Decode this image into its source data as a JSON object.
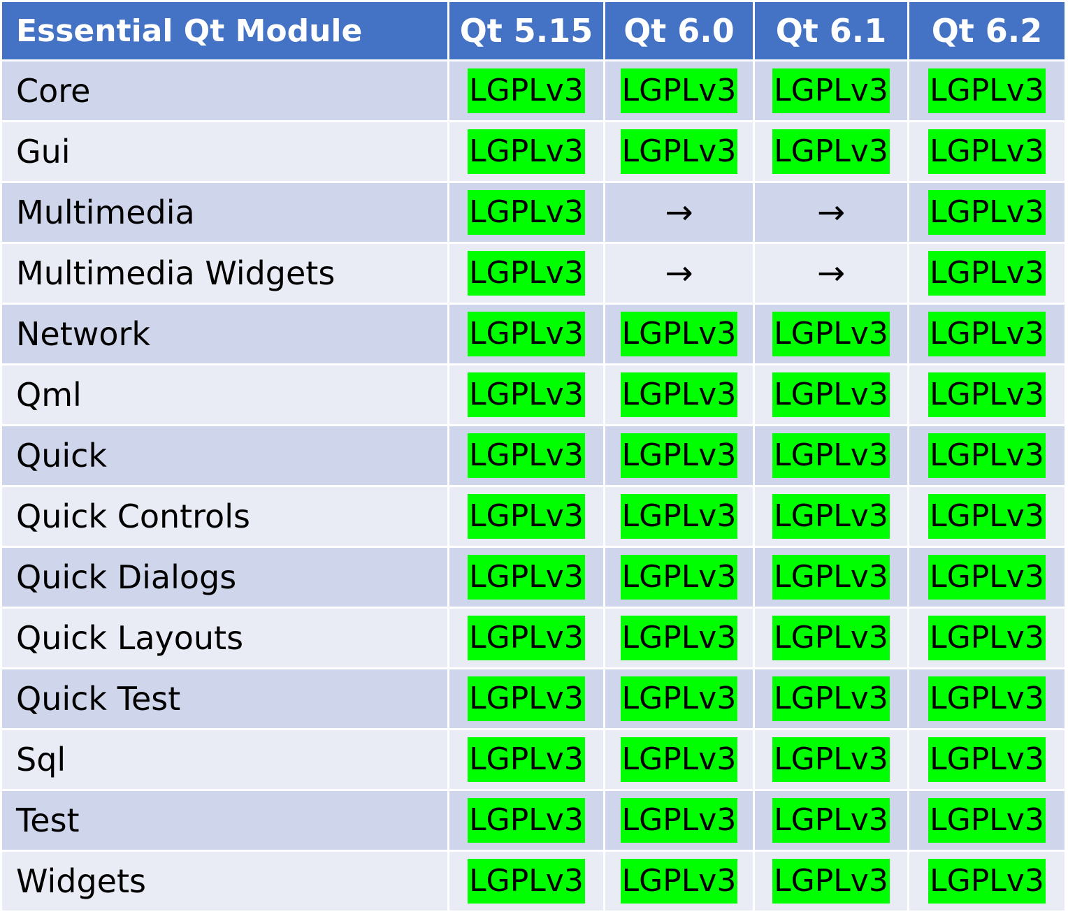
{
  "chart_data": {
    "type": "table",
    "columns": [
      "Essential Qt Module",
      "Qt 5.15",
      "Qt 6.0",
      "Qt 6.1",
      "Qt 6.2"
    ],
    "rows": [
      {
        "module": "Core",
        "values": [
          "LGPLv3",
          "LGPLv3",
          "LGPLv3",
          "LGPLv3"
        ]
      },
      {
        "module": "Gui",
        "values": [
          "LGPLv3",
          "LGPLv3",
          "LGPLv3",
          "LGPLv3"
        ]
      },
      {
        "module": "Multimedia",
        "values": [
          "LGPLv3",
          "→",
          "→",
          "LGPLv3"
        ]
      },
      {
        "module": "Multimedia Widgets",
        "values": [
          "LGPLv3",
          "→",
          "→",
          "LGPLv3"
        ]
      },
      {
        "module": "Network",
        "values": [
          "LGPLv3",
          "LGPLv3",
          "LGPLv3",
          "LGPLv3"
        ]
      },
      {
        "module": "Qml",
        "values": [
          "LGPLv3",
          "LGPLv3",
          "LGPLv3",
          "LGPLv3"
        ]
      },
      {
        "module": "Quick",
        "values": [
          "LGPLv3",
          "LGPLv3",
          "LGPLv3",
          "LGPLv3"
        ]
      },
      {
        "module": "Quick Controls",
        "values": [
          "LGPLv3",
          "LGPLv3",
          "LGPLv3",
          "LGPLv3"
        ]
      },
      {
        "module": "Quick Dialogs",
        "values": [
          "LGPLv3",
          "LGPLv3",
          "LGPLv3",
          "LGPLv3"
        ]
      },
      {
        "module": "Quick Layouts",
        "values": [
          "LGPLv3",
          "LGPLv3",
          "LGPLv3",
          "LGPLv3"
        ]
      },
      {
        "module": "Quick Test",
        "values": [
          "LGPLv3",
          "LGPLv3",
          "LGPLv3",
          "LGPLv3"
        ]
      },
      {
        "module": "Sql",
        "values": [
          "LGPLv3",
          "LGPLv3",
          "LGPLv3",
          "LGPLv3"
        ]
      },
      {
        "module": "Test",
        "values": [
          "LGPLv3",
          "LGPLv3",
          "LGPLv3",
          "LGPLv3"
        ]
      },
      {
        "module": "Widgets",
        "values": [
          "LGPLv3",
          "LGPLv3",
          "LGPLv3",
          "LGPLv3"
        ]
      }
    ]
  },
  "colors": {
    "header_bg": "#4472c4",
    "header_text": "#ffffff",
    "row_dark": "#cfd5ea",
    "row_light": "#e9ebf5",
    "license_highlight": "#00ff00"
  }
}
